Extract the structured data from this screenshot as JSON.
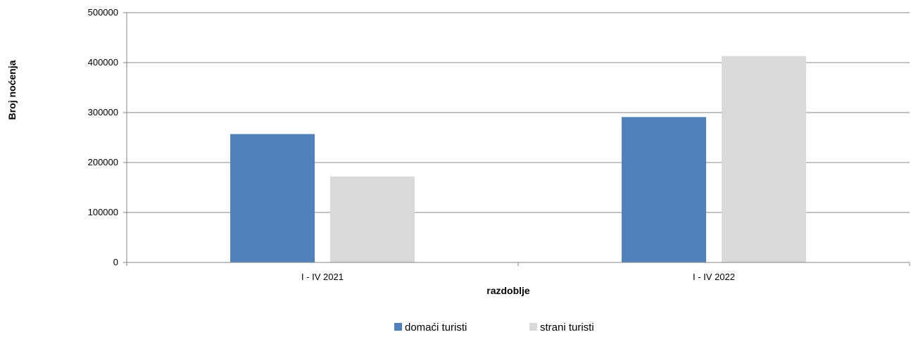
{
  "chart_data": {
    "type": "bar",
    "title": "",
    "xlabel": "razdoblje",
    "ylabel": "Broj noćenja",
    "categories": [
      "I - IV 2021",
      "I - IV 2022"
    ],
    "series": [
      {
        "name": "domaći turisti",
        "color": "#4f81bd",
        "values": [
          257000,
          291000
        ]
      },
      {
        "name": "strani turisti",
        "color": "#d9d9d9",
        "values": [
          172000,
          413000
        ]
      }
    ],
    "ylim": [
      0,
      500000
    ],
    "yticks": [
      "0",
      "100000",
      "200000",
      "300000",
      "400000",
      "500000"
    ],
    "grid": true,
    "legend_position": "bottom"
  }
}
